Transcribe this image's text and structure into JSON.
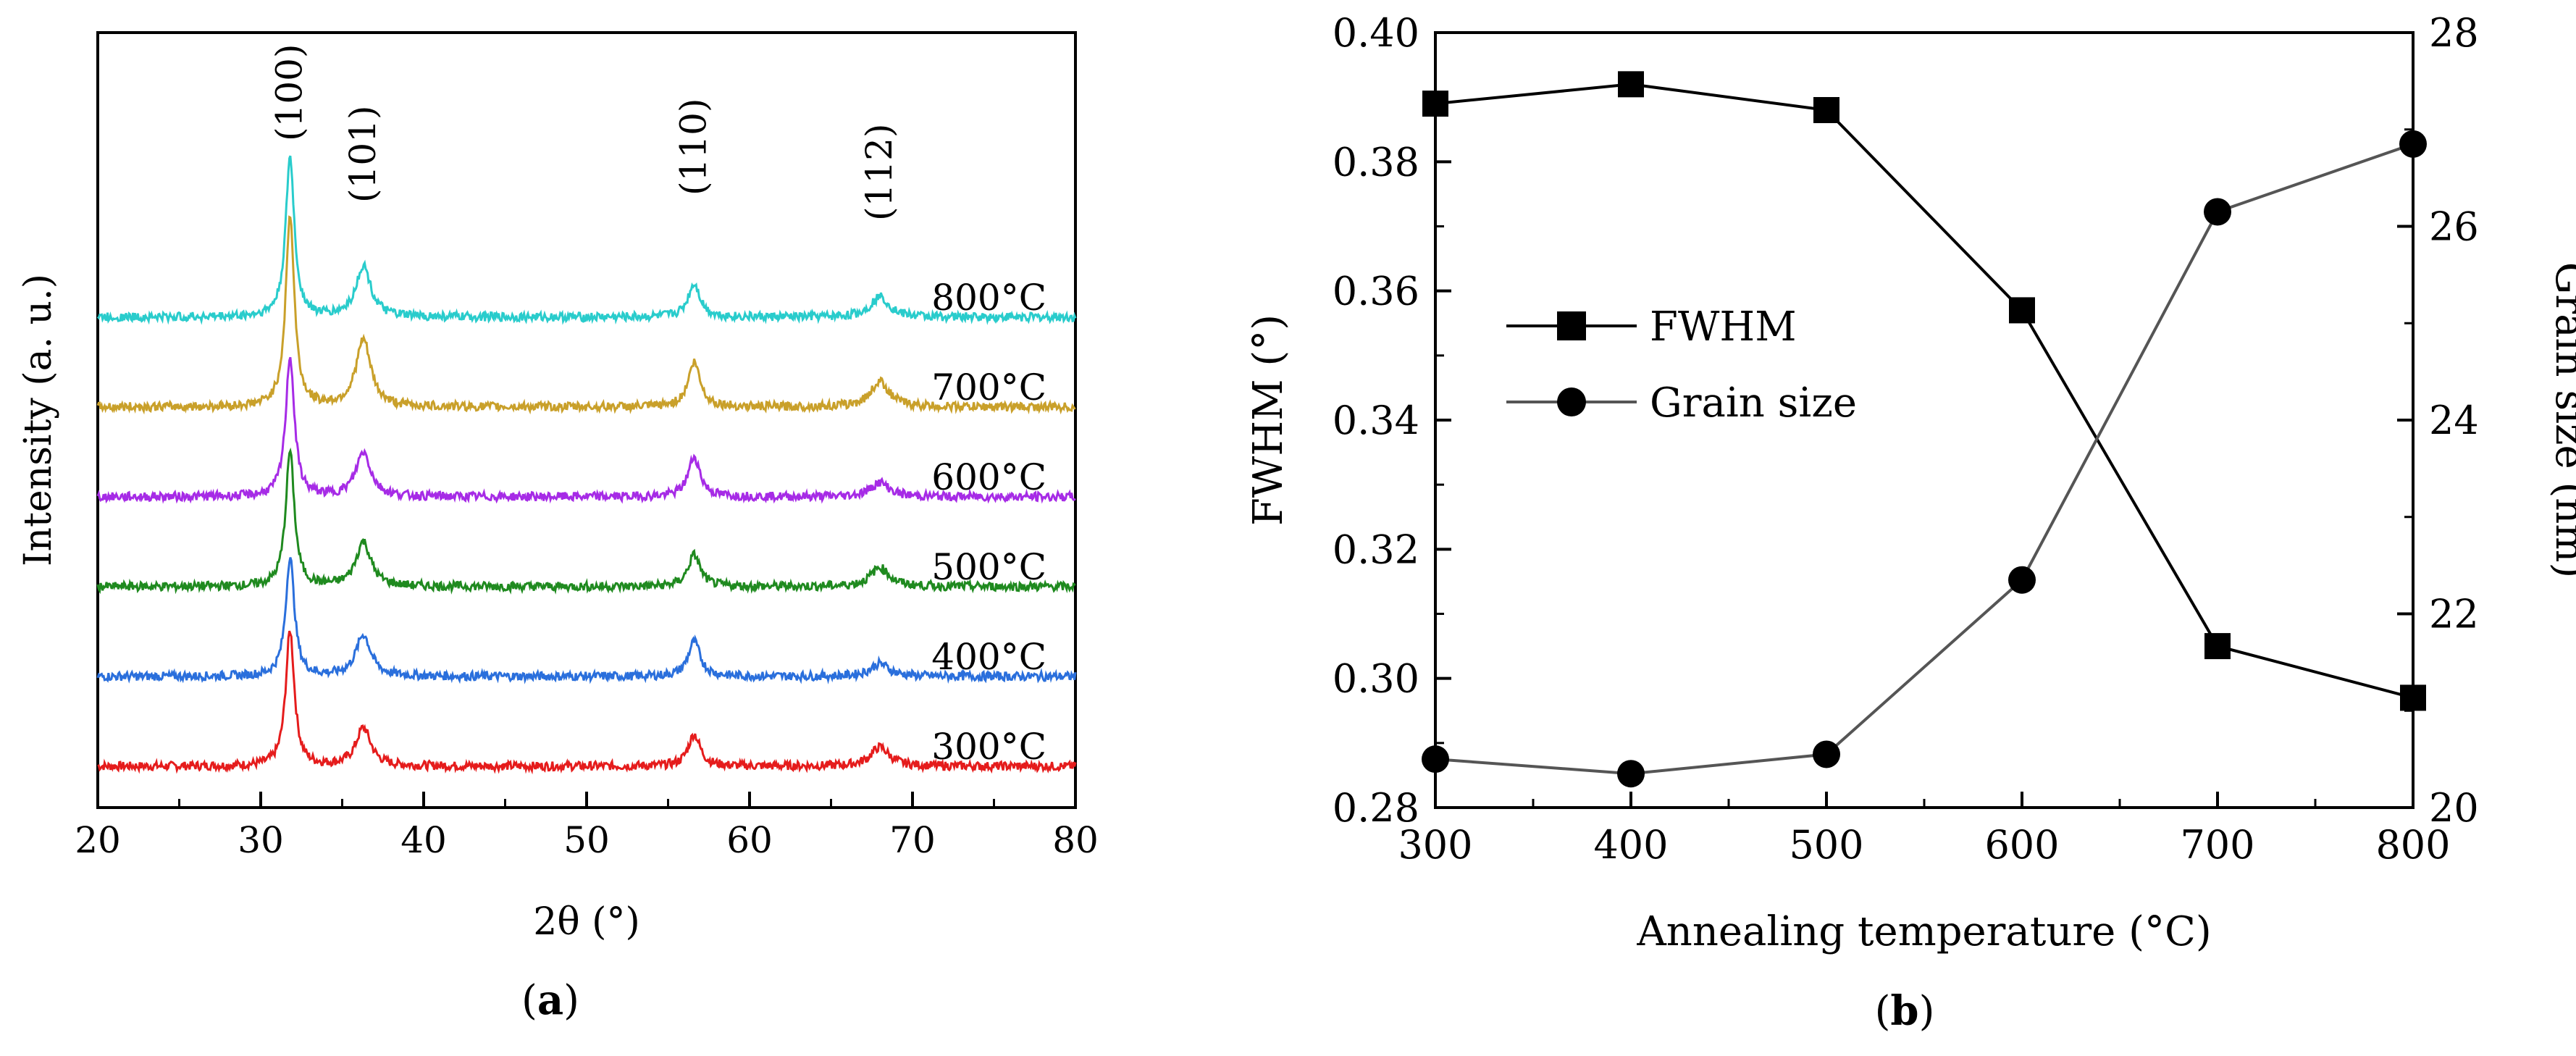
{
  "panel_a_caption": "a",
  "panel_b_caption": "b",
  "colors": {
    "300": "#e51c1c",
    "400": "#2a6fdc",
    "500": "#1f8a1f",
    "600": "#a62be6",
    "700": "#c9a02a",
    "800": "#29cccc",
    "fwhm_line": "#000000",
    "grain_line": "#555555"
  },
  "chart_data": [
    {
      "type": "line",
      "title": "",
      "xlabel": "2θ (°)",
      "ylabel": "Intensity (a. u.)",
      "xlim": [
        20,
        80
      ],
      "xticks": [
        20,
        30,
        40,
        50,
        60,
        70,
        80
      ],
      "y_ticks_shown": false,
      "peaks": [
        {
          "label": "(100)",
          "position": 31.8
        },
        {
          "label": "(101)",
          "position": 36.3
        },
        {
          "label": "(110)",
          "position": 56.6
        },
        {
          "label": "(112)",
          "position": 68.0
        }
      ],
      "series": [
        {
          "name": "300°C",
          "offset": 0,
          "baseline": 1.0,
          "peak_heights": [
            8.5,
            2.4,
            2.0,
            1.2
          ]
        },
        {
          "name": "400°C",
          "offset": 1,
          "baseline": 1.0,
          "peak_heights": [
            7.5,
            2.6,
            2.2,
            0.8
          ]
        },
        {
          "name": "500°C",
          "offset": 2,
          "baseline": 1.0,
          "peak_heights": [
            8.5,
            2.8,
            2.0,
            1.2
          ]
        },
        {
          "name": "600°C",
          "offset": 3,
          "baseline": 1.0,
          "peak_heights": [
            8.8,
            2.8,
            2.5,
            0.9
          ]
        },
        {
          "name": "700°C",
          "offset": 4,
          "baseline": 1.0,
          "peak_heights": [
            12.0,
            4.2,
            2.8,
            1.6
          ]
        },
        {
          "name": "800°C",
          "offset": 5,
          "baseline": 1.0,
          "peak_heights": [
            10.0,
            3.2,
            2.1,
            1.3
          ]
        }
      ]
    },
    {
      "type": "line",
      "title": "",
      "xlabel": "Annealing temperature (°C)",
      "ylabel": "FWHM (°)",
      "ylabel_right": "Grain size (nm)",
      "xlim": [
        300,
        800
      ],
      "ylim": [
        0.28,
        0.4
      ],
      "ylim_right": [
        20,
        28
      ],
      "xticks": [
        300,
        400,
        500,
        600,
        700,
        800
      ],
      "yticks": [
        "0.28",
        "0.30",
        "0.32",
        "0.34",
        "0.36",
        "0.38",
        "0.40"
      ],
      "yticks_right": [
        "20",
        "22",
        "24",
        "26",
        "28"
      ],
      "x": [
        300,
        400,
        500,
        600,
        700,
        800
      ],
      "legend_position": "middle-left",
      "series": [
        {
          "name": "FWHM",
          "axis": "left",
          "marker": "square",
          "values": [
            0.389,
            0.392,
            0.388,
            0.357,
            0.305,
            0.297
          ]
        },
        {
          "name": "Grain size",
          "axis": "right",
          "marker": "circle",
          "values": [
            20.5,
            20.35,
            20.55,
            22.35,
            26.15,
            26.85
          ]
        }
      ]
    }
  ]
}
